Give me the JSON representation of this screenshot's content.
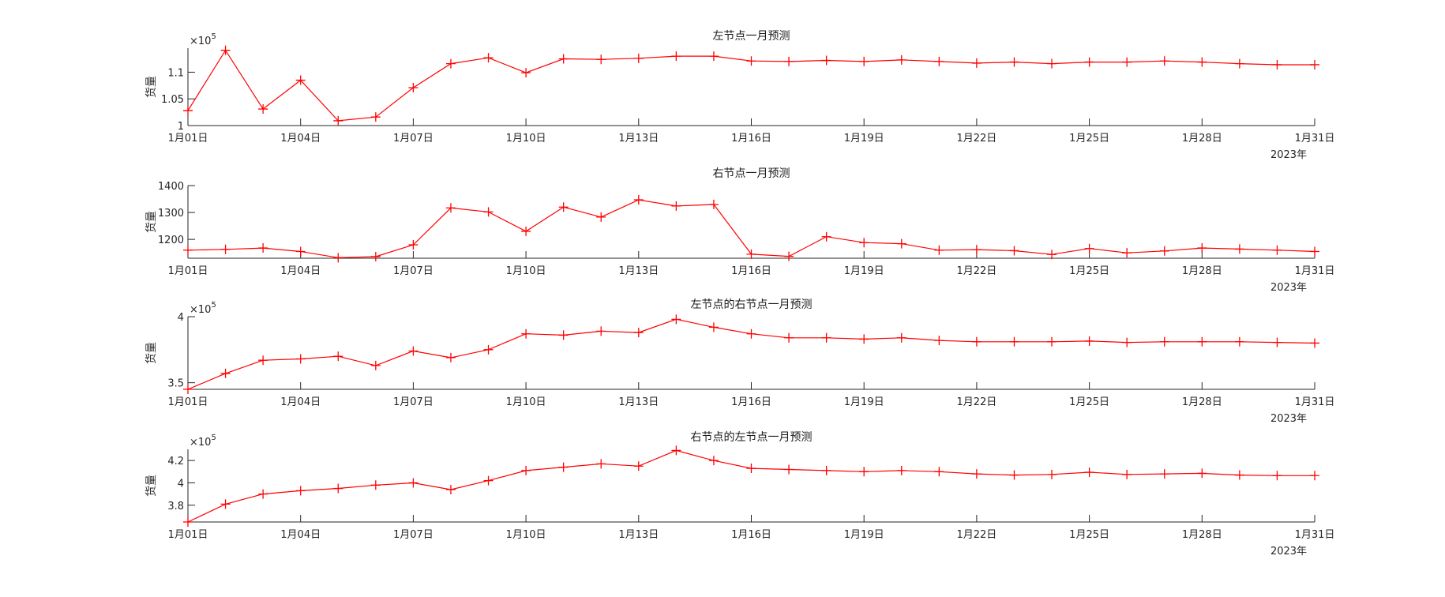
{
  "figure": {
    "x_tick_labels": [
      "1月01日",
      "1月04日",
      "1月07日",
      "1月10日",
      "1月13日",
      "1月16日",
      "1月19日",
      "1月22日",
      "1月25日",
      "1月28日",
      "1月31日"
    ],
    "x_secondary_label": "2023年",
    "line_color": "#ff0000",
    "marker": "+"
  },
  "chart_data": [
    {
      "type": "line",
      "title": "左节点一月预测",
      "ylabel": "货量",
      "y_exponent_label": "×10",
      "y_exponent_power": "5",
      "y_scale": 100000,
      "ylim": [
        1.0,
        1.145
      ],
      "yticks": [
        1.0,
        1.05,
        1.1
      ],
      "ytick_labels": [
        "1",
        "1.05",
        "1.1"
      ],
      "x": [
        1,
        2,
        3,
        4,
        5,
        6,
        7,
        8,
        9,
        10,
        11,
        12,
        13,
        14,
        15,
        16,
        17,
        18,
        19,
        20,
        21,
        22,
        23,
        24,
        25,
        26,
        27,
        28,
        29,
        30,
        31
      ],
      "series": [
        {
          "values": [
            1.028,
            1.141,
            1.031,
            1.085,
            1.009,
            1.016,
            1.071,
            1.116,
            1.127,
            1.099,
            1.125,
            1.124,
            1.126,
            1.13,
            1.13,
            1.121,
            1.12,
            1.122,
            1.12,
            1.123,
            1.12,
            1.117,
            1.119,
            1.116,
            1.119,
            1.119,
            1.121,
            1.119,
            1.116,
            1.114,
            1.114
          ]
        }
      ]
    },
    {
      "type": "line",
      "title": "右节点一月预测",
      "ylabel": "货量",
      "y_exponent_label": "",
      "y_exponent_power": "",
      "y_scale": 1,
      "ylim": [
        1130,
        1400
      ],
      "yticks": [
        1200,
        1300,
        1400
      ],
      "ytick_labels": [
        "1200",
        "1300",
        "1400"
      ],
      "x": [
        1,
        2,
        3,
        4,
        5,
        6,
        7,
        8,
        9,
        10,
        11,
        12,
        13,
        14,
        15,
        16,
        17,
        18,
        19,
        20,
        21,
        22,
        23,
        24,
        25,
        26,
        27,
        28,
        29,
        30,
        31
      ],
      "series": [
        {
          "values": [
            1160,
            1163,
            1168,
            1155,
            1132,
            1136,
            1180,
            1317,
            1302,
            1230,
            1320,
            1283,
            1347,
            1324,
            1330,
            1145,
            1137,
            1210,
            1188,
            1184,
            1160,
            1162,
            1158,
            1144,
            1166,
            1150,
            1157,
            1168,
            1164,
            1160,
            1155
          ]
        }
      ]
    },
    {
      "type": "line",
      "title": "左节点的右节点一月预测",
      "ylabel": "货量",
      "y_exponent_label": "×10",
      "y_exponent_power": "5",
      "y_scale": 100000,
      "ylim": [
        3.45,
        4.0
      ],
      "yticks": [
        3.5,
        4.0
      ],
      "ytick_labels": [
        "3.5",
        "4"
      ],
      "x": [
        1,
        2,
        3,
        4,
        5,
        6,
        7,
        8,
        9,
        10,
        11,
        12,
        13,
        14,
        15,
        16,
        17,
        18,
        19,
        20,
        21,
        22,
        23,
        24,
        25,
        26,
        27,
        28,
        29,
        30,
        31
      ],
      "series": [
        {
          "values": [
            3.45,
            3.57,
            3.67,
            3.68,
            3.7,
            3.63,
            3.74,
            3.69,
            3.75,
            3.87,
            3.86,
            3.89,
            3.88,
            3.98,
            3.92,
            3.87,
            3.84,
            3.84,
            3.83,
            3.84,
            3.82,
            3.81,
            3.81,
            3.81,
            3.815,
            3.805,
            3.81,
            3.81,
            3.81,
            3.805,
            3.8
          ]
        }
      ]
    },
    {
      "type": "line",
      "title": "右节点的左节点一月预测",
      "ylabel": "货量",
      "y_exponent_label": "×10",
      "y_exponent_power": "5",
      "y_scale": 100000,
      "ylim": [
        3.65,
        4.3
      ],
      "yticks": [
        3.8,
        4.0,
        4.2
      ],
      "ytick_labels": [
        "3.8",
        "4",
        "4.2"
      ],
      "x": [
        1,
        2,
        3,
        4,
        5,
        6,
        7,
        8,
        9,
        10,
        11,
        12,
        13,
        14,
        15,
        16,
        17,
        18,
        19,
        20,
        21,
        22,
        23,
        24,
        25,
        26,
        27,
        28,
        29,
        30,
        31
      ],
      "series": [
        {
          "values": [
            3.65,
            3.81,
            3.9,
            3.93,
            3.95,
            3.98,
            4.0,
            3.94,
            4.02,
            4.11,
            4.14,
            4.17,
            4.15,
            4.29,
            4.2,
            4.13,
            4.12,
            4.11,
            4.1,
            4.11,
            4.1,
            4.08,
            4.07,
            4.075,
            4.095,
            4.075,
            4.08,
            4.085,
            4.07,
            4.065,
            4.065
          ]
        }
      ]
    }
  ]
}
